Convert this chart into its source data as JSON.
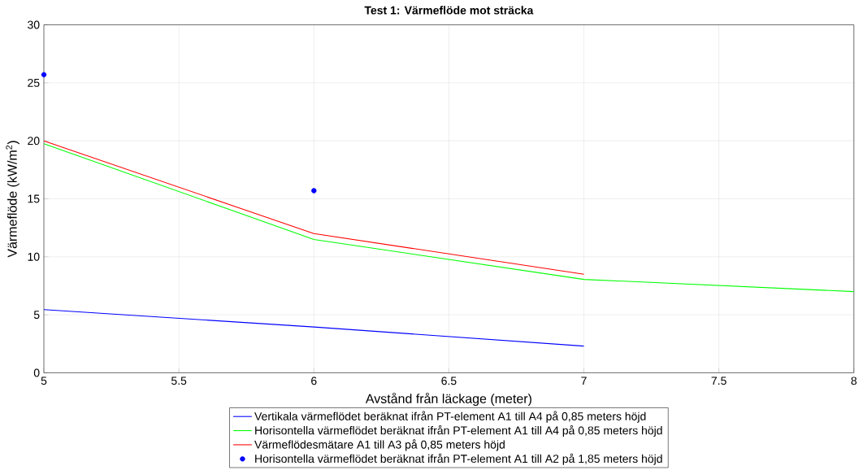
{
  "chart_data": {
    "type": "line",
    "title": "Test 1: Värmeflöde mot sträcka",
    "xlabel": "Avstånd från läckage (meter)",
    "ylabel": "Värmeflöde (kW/m$^{2}$)",
    "xlim": [
      5,
      8
    ],
    "ylim": [
      0,
      30
    ],
    "xticks": [
      5,
      5.5,
      6,
      6.5,
      7,
      7.5,
      8
    ],
    "yticks": [
      0,
      5,
      10,
      15,
      20,
      25,
      30
    ],
    "grid": true,
    "legend": "bottom",
    "series": [
      {
        "name": "Vertikala värmeflödet beräknat ifrån PT-element A1 till A4 på 0,85 meters höjd",
        "color": "#0000ff",
        "x": [
          5,
          6,
          7
        ],
        "values": [
          5.45,
          3.95,
          2.3
        ]
      },
      {
        "name": "Horisontella värmeflödet beräknat ifrån PT-element A1 till A4 på 0,85 meters höjd",
        "color": "#00ff00",
        "x": [
          5,
          6,
          7,
          8
        ],
        "values": [
          19.75,
          11.5,
          8.05,
          7.0
        ]
      },
      {
        "name": "Värmeflödesmätare A1 till A3 på 0,85 meters höjd",
        "color": "#ff0000",
        "x": [
          5,
          6,
          7
        ],
        "values": [
          20.0,
          12.0,
          8.5
        ]
      },
      {
        "name": "Horisontella värmeflödet beräknat ifrån PT-element A1 till A2 på 1,85 meters höjd",
        "color": "#0000ff",
        "type": "scatter",
        "x": [
          5,
          6
        ],
        "values": [
          25.7,
          15.7
        ]
      }
    ]
  }
}
